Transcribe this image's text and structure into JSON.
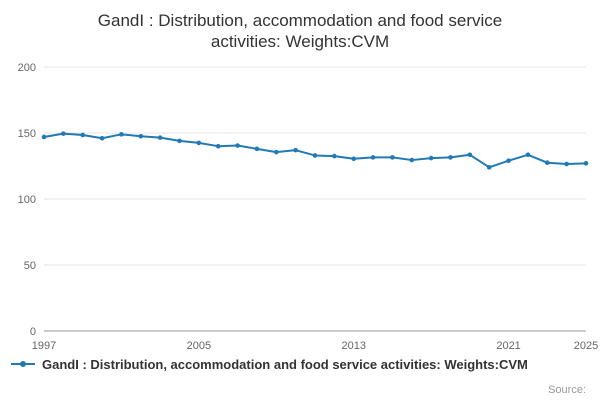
{
  "source_label": "Source:",
  "colors": {
    "line": "#2179b5",
    "grid": "#e6e6e6",
    "axis_line": "#999999",
    "axis_text": "#666666",
    "title_text": "#333333"
  },
  "chart_data": {
    "type": "line",
    "title": "GandI : Distribution, accommodation and food service activities: Weights:CVM",
    "x": [
      1997,
      1998,
      1999,
      2000,
      2001,
      2002,
      2003,
      2004,
      2005,
      2006,
      2007,
      2008,
      2009,
      2010,
      2011,
      2012,
      2013,
      2014,
      2015,
      2016,
      2017,
      2018,
      2019,
      2020,
      2021,
      2022,
      2023,
      2024,
      2025
    ],
    "series": [
      {
        "name": "GandI : Distribution, accommodation and food service activities: Weights:CVM",
        "values": [
          147,
          149.5,
          148.5,
          146,
          149,
          147.5,
          146.5,
          144,
          142.5,
          140,
          140.5,
          138,
          135.5,
          137,
          133,
          132.5,
          130.5,
          131.5,
          131.5,
          129.5,
          131,
          131.5,
          133.5,
          124,
          129,
          133.5,
          127.5,
          126.5,
          127
        ],
        "color": "#2179b5"
      }
    ],
    "xlabel": "",
    "ylabel": "",
    "ylim": [
      0,
      200
    ],
    "yticks": [
      0,
      50,
      100,
      150,
      200
    ],
    "xticks": [
      1997,
      2005,
      2013,
      2021,
      2025
    ],
    "grid": true,
    "legend_position": "bottom-left",
    "marker": "circle"
  }
}
